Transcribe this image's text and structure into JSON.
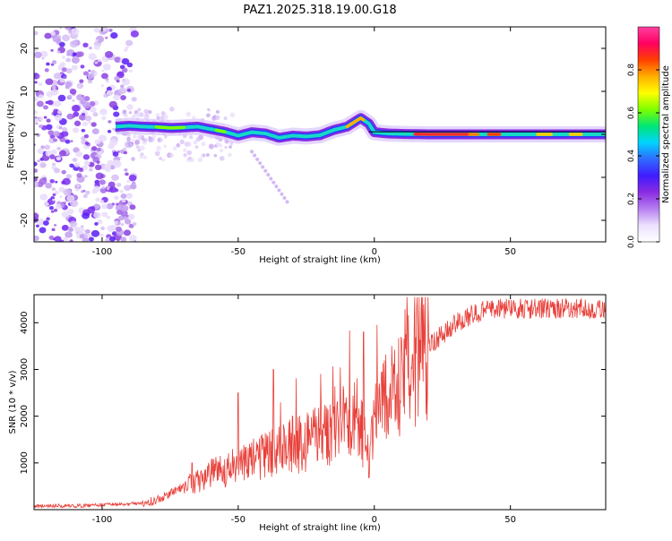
{
  "title": "PAZ1.2025.318.19.00.G18",
  "colors": {
    "snr_line": "#e8403a",
    "trace_line": "#000000",
    "colorbar": [
      "#ffffff",
      "#ece0ff",
      "#b67ef0",
      "#8a2be2",
      "#3f1cff",
      "#2f6bff",
      "#00d4ff",
      "#00e676",
      "#7cff00",
      "#ffff00",
      "#ffb000",
      "#ff4000",
      "#ff0060",
      "#ff40a0"
    ]
  },
  "chart_data": [
    {
      "type": "heatmap",
      "name": "spectrogram",
      "title": "PAZ1.2025.318.19.00.G18",
      "xlabel": "Height of straight line (km)",
      "ylabel": "Frequency (Hz)",
      "xlim": [
        -125,
        85
      ],
      "ylim": [
        -25,
        25
      ],
      "xticks": [
        -100,
        -50,
        0,
        50
      ],
      "xtick_labels": [
        "-100",
        "-50",
        "0",
        "50"
      ],
      "yticks": [
        -20,
        -10,
        0,
        10,
        20
      ],
      "ytick_labels": [
        "-20",
        "-10",
        "0",
        "10",
        "20"
      ],
      "colorbar": {
        "label": "Normalized spectral amplitude",
        "range": [
          0,
          1
        ],
        "ticks": [
          0.0,
          0.2,
          0.4,
          0.6,
          0.8
        ],
        "tick_labels": [
          "0.0",
          "0.2",
          "0.4",
          "0.6",
          "0.8"
        ]
      },
      "main_trace": {
        "x": [
          -95,
          -90,
          -85,
          -80,
          -75,
          -70,
          -65,
          -60,
          -55,
          -50,
          -45,
          -40,
          -35,
          -30,
          -25,
          -20,
          -15,
          -10,
          -7,
          -5,
          -2,
          0,
          5,
          10,
          20,
          30,
          40,
          50,
          60,
          70,
          85
        ],
        "y": [
          1.8,
          2.0,
          1.8,
          1.7,
          1.5,
          1.6,
          1.8,
          1.2,
          0.6,
          -0.3,
          0.5,
          0.2,
          -0.8,
          -0.3,
          -0.5,
          -0.2,
          1.0,
          1.8,
          3.0,
          3.8,
          2.5,
          0.5,
          0.2,
          0.1,
          0.0,
          0.0,
          0.0,
          0.0,
          0.0,
          0.0,
          0.0
        ]
      }
    },
    {
      "type": "line",
      "name": "snr",
      "xlabel": "Height of straight line (km)",
      "ylabel": "SNR (10 * v/v)",
      "xlim": [
        -125,
        85
      ],
      "ylim": [
        0,
        4600
      ],
      "xticks": [
        -100,
        -50,
        0,
        50
      ],
      "xtick_labels": [
        "-100",
        "-50",
        "0",
        "50"
      ],
      "yticks": [
        1000,
        2000,
        3000,
        4000
      ],
      "ytick_labels": [
        "1000",
        "2000",
        "3000",
        "4000"
      ],
      "series": [
        {
          "name": "SNR",
          "x": [
            -125,
            -110,
            -100,
            -90,
            -85,
            -80,
            -75,
            -70,
            -65,
            -60,
            -55,
            -50,
            -45,
            -40,
            -35,
            -30,
            -25,
            -20,
            -15,
            -10,
            -6,
            -4,
            -2,
            0,
            5,
            10,
            15,
            20,
            25,
            30,
            35,
            40,
            45,
            50,
            60,
            70,
            85
          ],
          "y": [
            80,
            80,
            100,
            120,
            150,
            200,
            350,
            500,
            600,
            750,
            850,
            950,
            1050,
            1150,
            1250,
            1350,
            1450,
            1600,
            1750,
            1900,
            2000,
            1500,
            1100,
            2000,
            2400,
            2900,
            3200,
            3500,
            3750,
            4000,
            4150,
            4250,
            4300,
            4300,
            4300,
            4300,
            4300
          ]
        }
      ],
      "spikes": [
        {
          "x": -67,
          "y": 1000
        },
        {
          "x": -50,
          "y": 2500
        },
        {
          "x": -37,
          "y": 3000
        },
        {
          "x": -30,
          "y": 2000
        },
        {
          "x": -4,
          "y": 3800
        }
      ]
    }
  ]
}
